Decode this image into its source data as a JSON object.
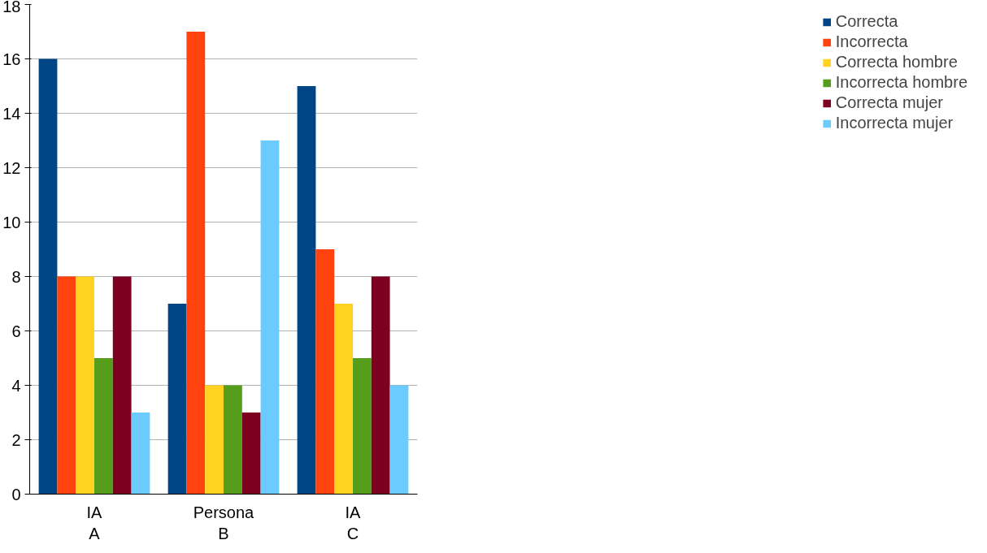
{
  "chart_data": {
    "type": "bar",
    "categories": [
      "IA\nA",
      "Persona\nB",
      "IA\nC"
    ],
    "series": [
      {
        "name": "Correcta",
        "color": "#004586",
        "values": [
          16,
          7,
          15
        ]
      },
      {
        "name": "Incorrecta",
        "color": "#ff420e",
        "values": [
          8,
          17,
          9
        ]
      },
      {
        "name": "Correcta hombre",
        "color": "#ffd320",
        "values": [
          8,
          4,
          7
        ]
      },
      {
        "name": "Incorrecta hombre",
        "color": "#579d1c",
        "values": [
          5,
          4,
          5
        ]
      },
      {
        "name": "Correcta mujer",
        "color": "#7e0021",
        "values": [
          8,
          3,
          8
        ]
      },
      {
        "name": "Incorrecta mujer",
        "color": "#6bcbff",
        "values": [
          3,
          13,
          4
        ]
      }
    ],
    "ylim": [
      0,
      18
    ],
    "yticks": [
      0,
      2,
      4,
      6,
      8,
      10,
      12,
      14,
      16,
      18
    ],
    "grid": "y",
    "legend": "right"
  }
}
